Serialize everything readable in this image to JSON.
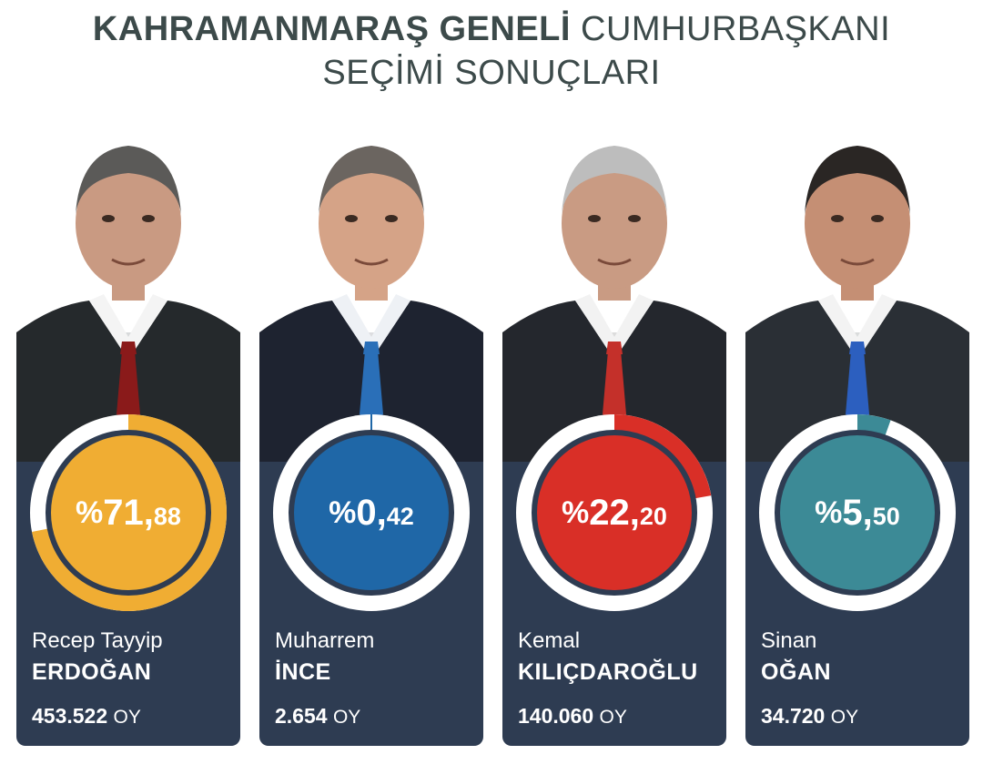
{
  "title": {
    "line1_bold": "KAHRAMANMARAŞ GENELİ",
    "line1_light": "CUMHURBAŞKANI",
    "line2": "SEÇİMİ SONUÇLARI"
  },
  "candidates": [
    {
      "first_name": "Recep Tayyip",
      "last_name": "ERDOĞAN",
      "percent_symbol": "%",
      "percent_int": "71,",
      "percent_dec": "88",
      "percent_value": 71.88,
      "votes": "453.522",
      "votes_unit": "OY",
      "color": "#f0ad33",
      "tie_color": "#8a1a1a",
      "shirt": "#f4f4f4",
      "suit": "#25292c",
      "bg": "#d8dadb",
      "skin": "#c99a82",
      "hair": "#5b5a58"
    },
    {
      "first_name": "Muharrem",
      "last_name": "İNCE",
      "percent_symbol": "%",
      "percent_int": "0,",
      "percent_dec": "42",
      "percent_value": 0.42,
      "votes": "2.654",
      "votes_unit": "OY",
      "color": "#1f67a7",
      "tie_color": "#2a6fb8",
      "shirt": "#eef1f5",
      "suit": "#1e2330",
      "bg": "#dcdde0",
      "skin": "#d5a387",
      "hair": "#6b6560"
    },
    {
      "first_name": "Kemal",
      "last_name": "KILIÇDAROĞLU",
      "percent_symbol": "%",
      "percent_int": "22,",
      "percent_dec": "20",
      "percent_value": 22.2,
      "votes": "140.060",
      "votes_unit": "OY",
      "color": "#d92f27",
      "tie_color": "#c4302a",
      "shirt": "#f2f2f2",
      "suit": "#24272d",
      "bg": "#dcdcdc",
      "skin": "#c99b83",
      "hair": "#bdbdbd"
    },
    {
      "first_name": "Sinan",
      "last_name": "OĞAN",
      "percent_symbol": "%",
      "percent_int": "5,",
      "percent_dec": "50",
      "percent_value": 5.5,
      "votes": "34.720",
      "votes_unit": "OY",
      "color": "#3c8a96",
      "tie_color": "#2c5fbf",
      "shirt": "#f3f3f3",
      "suit": "#2a2f35",
      "bg": "#dadcdc",
      "skin": "#c58f74",
      "hair": "#2a2624"
    }
  ]
}
